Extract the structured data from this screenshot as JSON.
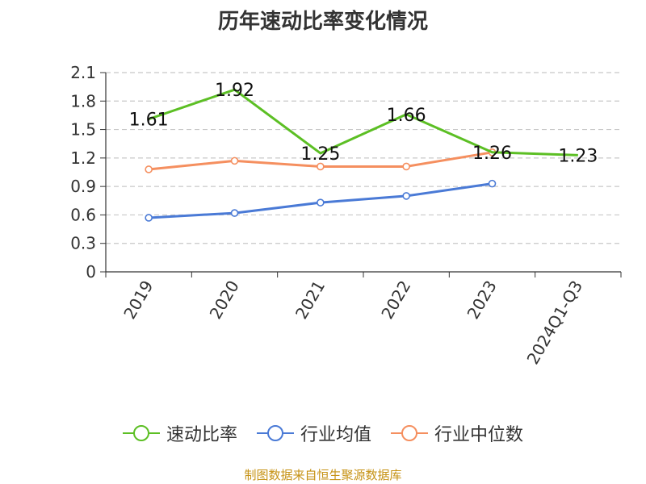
{
  "chart_data": {
    "type": "line",
    "title": "历年速动比率变化情况",
    "categories": [
      "2019",
      "2020",
      "2021",
      "2022",
      "2023",
      "2024Q1-Q3"
    ],
    "ylim": [
      0,
      2.1
    ],
    "yticks": [
      "0",
      "0.3",
      "0.6",
      "0.9",
      "1.2",
      "1.5",
      "1.8",
      "2.1"
    ],
    "grid": true,
    "legend_position": "bottom",
    "series": [
      {
        "name": "速动比率",
        "color": "#5cbf24",
        "values": [
          1.61,
          1.92,
          1.25,
          1.66,
          1.26,
          1.23
        ],
        "labels": [
          "1.61",
          "1.92",
          "1.25",
          "1.66",
          "1.26",
          "1.23"
        ],
        "show_markers": false
      },
      {
        "name": "行业均值",
        "color": "#4a7ad6",
        "values": [
          0.57,
          0.62,
          0.73,
          0.8,
          0.93,
          null
        ],
        "show_markers": true
      },
      {
        "name": "行业中位数",
        "color": "#f58f5f",
        "values": [
          1.08,
          1.17,
          1.11,
          1.11,
          1.26,
          null
        ],
        "show_markers": true
      }
    ]
  },
  "source_note": "制图数据来自恒生聚源数据库"
}
